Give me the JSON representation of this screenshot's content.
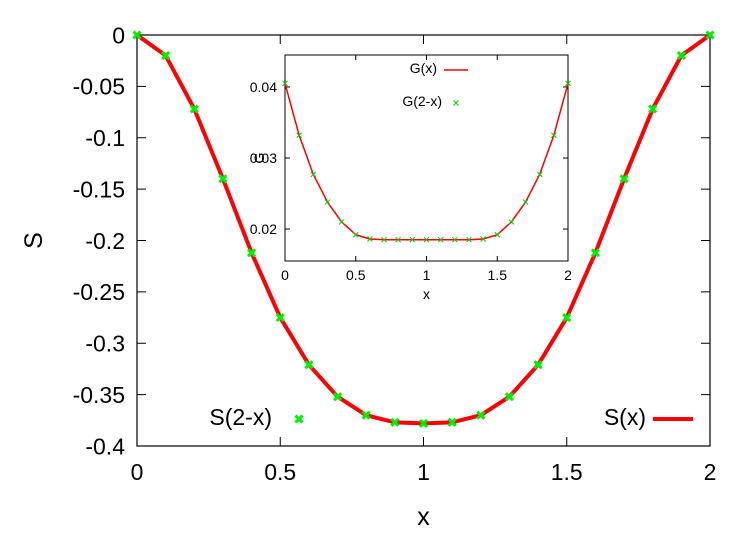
{
  "chart_data": [
    {
      "type": "line",
      "xlabel": "x",
      "ylabel": "S",
      "xlim": [
        0,
        2
      ],
      "ylim": [
        -0.4,
        0
      ],
      "xticks": [
        "0",
        "0.5",
        "1",
        "1.5",
        "2"
      ],
      "yticks": [
        "0",
        "-0.05",
        "-0.1",
        "-0.15",
        "-0.2",
        "-0.25",
        "-0.3",
        "-0.35",
        "-0.4"
      ],
      "grid": false,
      "series": [
        {
          "name": "S(x)",
          "style": "line",
          "color": "#ff0000",
          "x": [
            0,
            0.1,
            0.2,
            0.3,
            0.4,
            0.5,
            0.6,
            0.7,
            0.8,
            0.9,
            1.0,
            1.1,
            1.2,
            1.3,
            1.4,
            1.5,
            1.6,
            1.7,
            1.8,
            1.9,
            2.0
          ],
          "values": [
            0,
            -0.02,
            -0.072,
            -0.14,
            -0.212,
            -0.275,
            -0.321,
            -0.352,
            -0.37,
            -0.377,
            -0.378,
            -0.377,
            -0.37,
            -0.352,
            -0.321,
            -0.275,
            -0.212,
            -0.14,
            -0.072,
            -0.02,
            0
          ]
        },
        {
          "name": "S(2-x)",
          "style": "points",
          "color": "#00ee00",
          "x": [
            0,
            0.1,
            0.2,
            0.3,
            0.4,
            0.5,
            0.6,
            0.7,
            0.8,
            0.9,
            1.0,
            1.1,
            1.2,
            1.3,
            1.4,
            1.5,
            1.6,
            1.7,
            1.8,
            1.9,
            2.0
          ],
          "values": [
            0,
            -0.02,
            -0.072,
            -0.14,
            -0.212,
            -0.275,
            -0.321,
            -0.352,
            -0.37,
            -0.377,
            -0.378,
            -0.377,
            -0.37,
            -0.352,
            -0.321,
            -0.275,
            -0.212,
            -0.14,
            -0.072,
            -0.02,
            0
          ]
        }
      ]
    },
    {
      "type": "line",
      "xlabel": "x",
      "ylabel": "G",
      "xlim": [
        0,
        2
      ],
      "ylim": [
        0.0155,
        0.0445
      ],
      "xticks": [
        "0",
        "0.5",
        "1",
        "1.5",
        "2"
      ],
      "yticks": [
        "0.02",
        "0.03",
        "0.04"
      ],
      "grid": false,
      "series": [
        {
          "name": "G(x)",
          "style": "line",
          "color": "#ff0000",
          "x": [
            0,
            0.1,
            0.2,
            0.3,
            0.4,
            0.5,
            0.6,
            0.7,
            0.8,
            0.9,
            1.0,
            1.1,
            1.2,
            1.3,
            1.4,
            1.5,
            1.6,
            1.7,
            1.8,
            1.9,
            2.0
          ],
          "values": [
            0.0405,
            0.0332,
            0.0277,
            0.0238,
            0.021,
            0.0192,
            0.0186,
            0.0185,
            0.0185,
            0.0185,
            0.0185,
            0.0185,
            0.0185,
            0.0185,
            0.0186,
            0.0192,
            0.021,
            0.0238,
            0.0277,
            0.0332,
            0.0405
          ]
        },
        {
          "name": "G(2-x)",
          "style": "points",
          "color": "#00cc00",
          "x": [
            0,
            0.1,
            0.2,
            0.3,
            0.4,
            0.5,
            0.6,
            0.7,
            0.8,
            0.9,
            1.0,
            1.1,
            1.2,
            1.3,
            1.4,
            1.5,
            1.6,
            1.7,
            1.8,
            1.9,
            2.0
          ],
          "values": [
            0.0405,
            0.0332,
            0.0277,
            0.0238,
            0.021,
            0.0192,
            0.0186,
            0.0185,
            0.0185,
            0.0185,
            0.0185,
            0.0185,
            0.0185,
            0.0185,
            0.0186,
            0.0192,
            0.021,
            0.0238,
            0.0277,
            0.0332,
            0.0405
          ]
        }
      ]
    }
  ]
}
